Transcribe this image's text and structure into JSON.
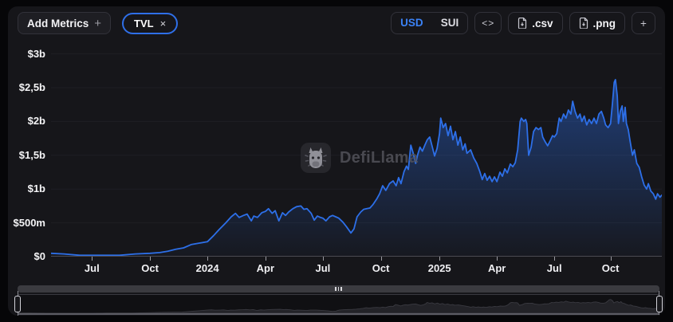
{
  "header": {
    "add_metrics_label": "Add Metrics",
    "add_metrics_plus": "+",
    "metric_chip": {
      "label": "TVL",
      "close": "×"
    },
    "currency_toggle": {
      "options": [
        "USD",
        "SUI"
      ],
      "selected": "USD"
    },
    "embed_label": "<>",
    "csv_label": ".csv",
    "png_label": ".png",
    "more_label": "+"
  },
  "watermark": {
    "text": "DefiLlama"
  },
  "colors": {
    "accent_blue": "#2f6fe8",
    "selected_currency_blue": "#3b82f6",
    "page_bg": "#060608",
    "card_bg": "#16161a"
  },
  "chart_data": {
    "type": "area",
    "title": "TVL",
    "currency": "USD",
    "grid": "horizontal-only",
    "ylim_b": [
      0,
      3.09
    ],
    "y_ticks": [
      {
        "label": "$0",
        "value": 0
      },
      {
        "label": "$500m",
        "value": 0.5
      },
      {
        "label": "$1b",
        "value": 1
      },
      {
        "label": "$1,5b",
        "value": 1.5
      },
      {
        "label": "$2b",
        "value": 2
      },
      {
        "label": "$2,5b",
        "value": 2.5
      },
      {
        "label": "$3b",
        "value": 3
      }
    ],
    "x_ticks": [
      {
        "label": "Jul",
        "pos": 0.067,
        "bold": false
      },
      {
        "label": "Oct",
        "pos": 0.162,
        "bold": false
      },
      {
        "label": "2024",
        "pos": 0.256,
        "bold": true
      },
      {
        "label": "Apr",
        "pos": 0.351,
        "bold": false
      },
      {
        "label": "Jul",
        "pos": 0.445,
        "bold": false
      },
      {
        "label": "Oct",
        "pos": 0.54,
        "bold": false
      },
      {
        "label": "2025",
        "pos": 0.636,
        "bold": true
      },
      {
        "label": "Apr",
        "pos": 0.73,
        "bold": false
      },
      {
        "label": "Jul",
        "pos": 0.824,
        "bold": false
      },
      {
        "label": "Oct",
        "pos": 0.916,
        "bold": false
      }
    ],
    "series": [
      {
        "name": "TVL",
        "color": "#2d6fe8",
        "unit": "USD billions",
        "points": [
          [
            0.0,
            0.05
          ],
          [
            0.021,
            0.04
          ],
          [
            0.047,
            0.02
          ],
          [
            0.067,
            0.02
          ],
          [
            0.086,
            0.02
          ],
          [
            0.112,
            0.02
          ],
          [
            0.138,
            0.04
          ],
          [
            0.162,
            0.05
          ],
          [
            0.178,
            0.06
          ],
          [
            0.191,
            0.08
          ],
          [
            0.204,
            0.11
          ],
          [
            0.217,
            0.13
          ],
          [
            0.23,
            0.18
          ],
          [
            0.243,
            0.2
          ],
          [
            0.256,
            0.22
          ],
          [
            0.266,
            0.31
          ],
          [
            0.275,
            0.4
          ],
          [
            0.286,
            0.5
          ],
          [
            0.295,
            0.59
          ],
          [
            0.302,
            0.64
          ],
          [
            0.308,
            0.58
          ],
          [
            0.315,
            0.61
          ],
          [
            0.321,
            0.63
          ],
          [
            0.328,
            0.53
          ],
          [
            0.332,
            0.6
          ],
          [
            0.338,
            0.58
          ],
          [
            0.345,
            0.65
          ],
          [
            0.351,
            0.67
          ],
          [
            0.356,
            0.71
          ],
          [
            0.362,
            0.64
          ],
          [
            0.367,
            0.68
          ],
          [
            0.373,
            0.53
          ],
          [
            0.379,
            0.65
          ],
          [
            0.384,
            0.61
          ],
          [
            0.389,
            0.66
          ],
          [
            0.396,
            0.71
          ],
          [
            0.402,
            0.74
          ],
          [
            0.409,
            0.75
          ],
          [
            0.414,
            0.7
          ],
          [
            0.419,
            0.71
          ],
          [
            0.426,
            0.64
          ],
          [
            0.431,
            0.54
          ],
          [
            0.436,
            0.6
          ],
          [
            0.441,
            0.58
          ],
          [
            0.445,
            0.57
          ],
          [
            0.45,
            0.53
          ],
          [
            0.456,
            0.59
          ],
          [
            0.461,
            0.61
          ],
          [
            0.466,
            0.59
          ],
          [
            0.471,
            0.57
          ],
          [
            0.478,
            0.51
          ],
          [
            0.484,
            0.44
          ],
          [
            0.491,
            0.35
          ],
          [
            0.496,
            0.41
          ],
          [
            0.501,
            0.59
          ],
          [
            0.507,
            0.66
          ],
          [
            0.512,
            0.7
          ],
          [
            0.517,
            0.71
          ],
          [
            0.522,
            0.72
          ],
          [
            0.527,
            0.77
          ],
          [
            0.533,
            0.85
          ],
          [
            0.538,
            0.93
          ],
          [
            0.543,
            1.05
          ],
          [
            0.548,
            0.98
          ],
          [
            0.554,
            1.08
          ],
          [
            0.56,
            1.12
          ],
          [
            0.565,
            1.05
          ],
          [
            0.569,
            1.17
          ],
          [
            0.573,
            1.08
          ],
          [
            0.578,
            1.26
          ],
          [
            0.582,
            1.34
          ],
          [
            0.585,
            1.29
          ],
          [
            0.589,
            1.65
          ],
          [
            0.593,
            1.53
          ],
          [
            0.597,
            1.38
          ],
          [
            0.6,
            1.5
          ],
          [
            0.604,
            1.62
          ],
          [
            0.608,
            1.56
          ],
          [
            0.612,
            1.65
          ],
          [
            0.616,
            1.73
          ],
          [
            0.62,
            1.77
          ],
          [
            0.624,
            1.63
          ],
          [
            0.628,
            1.49
          ],
          [
            0.632,
            1.6
          ],
          [
            0.636,
            1.82
          ],
          [
            0.638,
            2.05
          ],
          [
            0.642,
            1.91
          ],
          [
            0.646,
            1.97
          ],
          [
            0.65,
            1.79
          ],
          [
            0.654,
            1.93
          ],
          [
            0.658,
            1.73
          ],
          [
            0.662,
            1.85
          ],
          [
            0.666,
            1.65
          ],
          [
            0.67,
            1.77
          ],
          [
            0.674,
            1.58
          ],
          [
            0.678,
            1.67
          ],
          [
            0.681,
            1.53
          ],
          [
            0.687,
            1.58
          ],
          [
            0.692,
            1.46
          ],
          [
            0.697,
            1.38
          ],
          [
            0.702,
            1.26
          ],
          [
            0.706,
            1.14
          ],
          [
            0.71,
            1.23
          ],
          [
            0.714,
            1.13
          ],
          [
            0.718,
            1.19
          ],
          [
            0.722,
            1.11
          ],
          [
            0.726,
            1.18
          ],
          [
            0.73,
            1.11
          ],
          [
            0.735,
            1.25
          ],
          [
            0.739,
            1.19
          ],
          [
            0.743,
            1.3
          ],
          [
            0.747,
            1.24
          ],
          [
            0.752,
            1.37
          ],
          [
            0.756,
            1.33
          ],
          [
            0.76,
            1.39
          ],
          [
            0.764,
            1.58
          ],
          [
            0.768,
            2.0
          ],
          [
            0.77,
            2.05
          ],
          [
            0.774,
            2.0
          ],
          [
            0.777,
            2.03
          ],
          [
            0.779,
            1.97
          ],
          [
            0.782,
            1.5
          ],
          [
            0.786,
            1.62
          ],
          [
            0.79,
            1.85
          ],
          [
            0.794,
            1.91
          ],
          [
            0.798,
            1.88
          ],
          [
            0.802,
            1.91
          ],
          [
            0.805,
            1.77
          ],
          [
            0.809,
            1.7
          ],
          [
            0.813,
            1.64
          ],
          [
            0.817,
            1.71
          ],
          [
            0.821,
            1.79
          ],
          [
            0.824,
            1.77
          ],
          [
            0.828,
            1.82
          ],
          [
            0.832,
            2.05
          ],
          [
            0.835,
            2.0
          ],
          [
            0.839,
            2.11
          ],
          [
            0.843,
            2.05
          ],
          [
            0.847,
            2.17
          ],
          [
            0.851,
            2.11
          ],
          [
            0.854,
            2.3
          ],
          [
            0.858,
            2.15
          ],
          [
            0.862,
            2.05
          ],
          [
            0.866,
            2.11
          ],
          [
            0.869,
            2.0
          ],
          [
            0.873,
            2.08
          ],
          [
            0.877,
            1.95
          ],
          [
            0.881,
            2.03
          ],
          [
            0.885,
            1.97
          ],
          [
            0.889,
            2.05
          ],
          [
            0.893,
            1.97
          ],
          [
            0.897,
            2.11
          ],
          [
            0.901,
            2.15
          ],
          [
            0.905,
            2.05
          ],
          [
            0.908,
            1.95
          ],
          [
            0.912,
            1.91
          ],
          [
            0.916,
            1.97
          ],
          [
            0.919,
            2.26
          ],
          [
            0.922,
            2.58
          ],
          [
            0.924,
            2.62
          ],
          [
            0.927,
            2.38
          ],
          [
            0.929,
            1.97
          ],
          [
            0.932,
            2.15
          ],
          [
            0.935,
            2.23
          ],
          [
            0.937,
            2.0
          ],
          [
            0.94,
            2.21
          ],
          [
            0.942,
            1.97
          ],
          [
            0.945,
            1.88
          ],
          [
            0.948,
            1.71
          ],
          [
            0.952,
            1.5
          ],
          [
            0.955,
            1.58
          ],
          [
            0.959,
            1.38
          ],
          [
            0.963,
            1.32
          ],
          [
            0.967,
            1.18
          ],
          [
            0.971,
            1.06
          ],
          [
            0.975,
            1.0
          ],
          [
            0.978,
            1.08
          ],
          [
            0.982,
            0.97
          ],
          [
            0.986,
            0.93
          ],
          [
            0.99,
            0.85
          ],
          [
            0.993,
            0.93
          ],
          [
            0.997,
            0.88
          ],
          [
            1.0,
            0.91
          ]
        ]
      }
    ],
    "legend": {
      "visible": false
    }
  }
}
